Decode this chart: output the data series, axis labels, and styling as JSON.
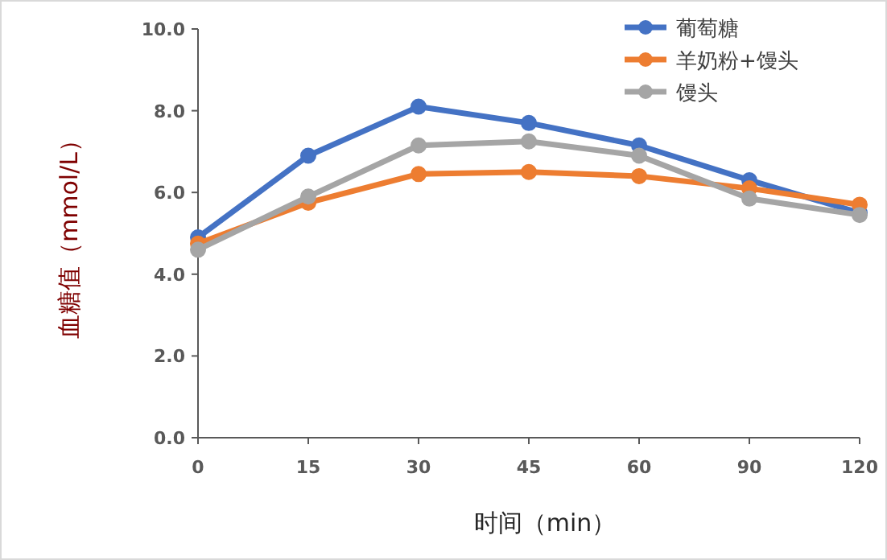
{
  "chart_data": {
    "type": "line",
    "xlabel": "时间（min）",
    "ylabel": "血糖值（mmol/L）",
    "categories": [
      "0",
      "15",
      "30",
      "45",
      "60",
      "90",
      "120"
    ],
    "series": [
      {
        "name": "葡萄糖",
        "color": "#4472c4",
        "values": [
          4.9,
          6.9,
          8.1,
          7.7,
          7.15,
          6.3,
          5.5
        ]
      },
      {
        "name": "羊奶粉+馒头",
        "color": "#ed7d31",
        "values": [
          4.75,
          5.75,
          6.45,
          6.5,
          6.4,
          6.1,
          5.7
        ]
      },
      {
        "name": "馒头",
        "color": "#a5a5a5",
        "values": [
          4.6,
          5.9,
          7.15,
          7.25,
          6.9,
          5.85,
          5.45
        ]
      }
    ],
    "ylim": [
      0,
      10
    ],
    "yticks": [
      {
        "value": 0,
        "label": "0.0"
      },
      {
        "value": 2,
        "label": "2.0"
      },
      {
        "value": 4,
        "label": "4.0"
      },
      {
        "value": 6,
        "label": "6.0"
      },
      {
        "value": 8,
        "label": "8.0"
      },
      {
        "value": 10,
        "label": "10.0"
      }
    ],
    "grid": false,
    "legend": "top right",
    "marker": "circle",
    "line_style": "solid"
  }
}
